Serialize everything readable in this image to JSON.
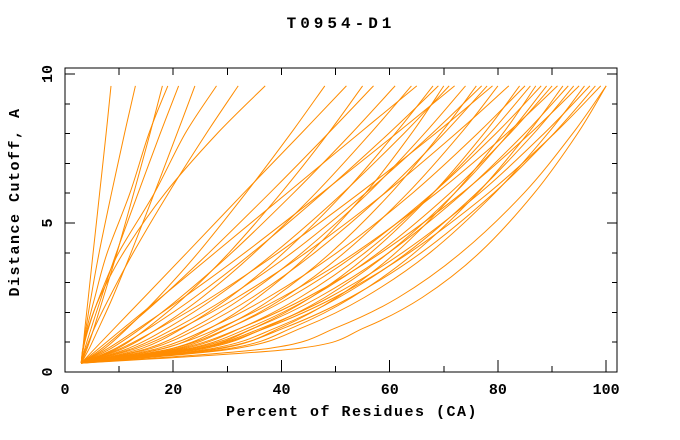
{
  "figure": {
    "background": "#FFFFFF",
    "title": "T0954-D1"
  },
  "chart_data": {
    "type": "line",
    "title": "T0954-D1",
    "xlabel": "Percent of Residues (CA)",
    "ylabel": "Distance Cutoff, A",
    "xlim": [
      0,
      102
    ],
    "ylim": [
      0,
      10.2
    ],
    "xticks": [
      0,
      20,
      40,
      60,
      80,
      100
    ],
    "xtick_labels": [
      "0",
      "20",
      "40",
      "60",
      "80",
      "100"
    ],
    "x_minor_ticks": [
      10,
      30,
      50,
      70,
      90
    ],
    "x_top_ticks": [
      10,
      20,
      30,
      40,
      50,
      60,
      70,
      80,
      90
    ],
    "yticks": [
      0,
      5,
      10
    ],
    "ytick_labels": [
      "0",
      "5",
      "10"
    ],
    "y_minor_ticks": [
      1,
      2,
      3,
      4,
      6,
      7,
      8,
      9
    ],
    "grid": false,
    "legend": "none",
    "line_color": "#FF8C00",
    "axis_color": "#000000",
    "cutoffs": [
      0.3,
      0.8,
      1.5,
      2.5,
      4,
      6,
      8,
      9.6
    ],
    "series": [
      {
        "percents": [
          3,
          3.3,
          3.7,
          4.3,
          5.2,
          6.4,
          7.6,
          8.5
        ]
      },
      {
        "percents": [
          3,
          3.3,
          3.9,
          4.8,
          6.3,
          8.6,
          11,
          13
        ]
      },
      {
        "percents": [
          3,
          4.1,
          5.4,
          7.1,
          9.6,
          12.7,
          15.7,
          18
        ]
      },
      {
        "percents": [
          3,
          3.4,
          4.1,
          5.5,
          7.8,
          12,
          15.5,
          19
        ]
      },
      {
        "percents": [
          3,
          3.7,
          4.9,
          6.7,
          9.5,
          13.5,
          17.6,
          21
        ]
      },
      {
        "percents": [
          3,
          4.5,
          6.3,
          8.8,
          12.2,
          16.5,
          20.7,
          24
        ]
      },
      {
        "percents": [
          3,
          3.4,
          4.4,
          6.3,
          9.9,
          16.5,
          22.2,
          28
        ]
      },
      {
        "percents": [
          3,
          3.9,
          5.5,
          8.2,
          12.6,
          19.1,
          26.1,
          32
        ]
      },
      {
        "percents": [
          3,
          3.3,
          4.3,
          6.4,
          10.8,
          18.5,
          28.1,
          37
        ]
      },
      {
        "percents": [
          3,
          7.4,
          11.7,
          17.2,
          24.6,
          33.4,
          41.7,
          48
        ]
      },
      {
        "percents": [
          3,
          5.6,
          9.3,
          14.6,
          22.5,
          33,
          43.6,
          52
        ]
      },
      {
        "percents": [
          3,
          9.8,
          15.4,
          22,
          30.3,
          39.9,
          48.6,
          55
        ]
      },
      {
        "percents": [
          3,
          6.9,
          11.5,
          17.8,
          26.6,
          37.8,
          48.6,
          57
        ]
      },
      {
        "percents": [
          3,
          8.6,
          14.3,
          21.3,
          30.8,
          42.2,
          52.9,
          61
        ]
      },
      {
        "percents": [
          3,
          10.9,
          17.5,
          25.3,
          35,
          46.3,
          56.4,
          64
        ]
      },
      {
        "percents": [
          3,
          6.3,
          11,
          17.7,
          27.7,
          41,
          54.3,
          65
        ]
      },
      {
        "percents": [
          3,
          14.3,
          22,
          30.4,
          40.4,
          51.5,
          61,
          68
        ]
      },
      {
        "percents": [
          3,
          9.4,
          15.8,
          23.9,
          34.6,
          47.6,
          59.8,
          69
        ]
      },
      {
        "percents": [
          3,
          18.5,
          27.1,
          35.6,
          45.3,
          55.5,
          64,
          70
        ]
      },
      {
        "percents": [
          3,
          11.8,
          19.2,
          27.8,
          38.7,
          51.3,
          62.6,
          71
        ]
      },
      {
        "percents": [
          3,
          8,
          13.9,
          21.9,
          33.2,
          47.4,
          61.2,
          72
        ]
      },
      {
        "percents": [
          3,
          15.4,
          23.8,
          32.9,
          43.8,
          56,
          66.4,
          74
        ]
      },
      {
        "percents": [
          3,
          19.9,
          29.2,
          38.6,
          49.1,
          60.2,
          69.4,
          76
        ]
      },
      {
        "percents": [
          3,
          12.6,
          20.6,
          30,
          41.9,
          55.5,
          67.8,
          77
        ]
      },
      {
        "percents": [
          3,
          16.1,
          25,
          34.6,
          46.1,
          59,
          70,
          78
        ]
      },
      {
        "percents": [
          3,
          10.4,
          17.7,
          27,
          39.4,
          54.4,
          68.4,
          79
        ]
      },
      {
        "percents": [
          3,
          20.9,
          30.6,
          40.5,
          51.6,
          63.3,
          73.1,
          80
        ]
      },
      {
        "percents": [
          3,
          13.3,
          21.8,
          31.8,
          44.5,
          59.1,
          72.2,
          82
        ]
      },
      {
        "percents": [
          3,
          24.8,
          35.2,
          45.4,
          56.5,
          68,
          77.4,
          84
        ]
      },
      {
        "percents": [
          3,
          17.3,
          27,
          37.5,
          50.2,
          64.2,
          76.2,
          85
        ]
      },
      {
        "percents": [
          3,
          22.3,
          32.8,
          43.4,
          55.4,
          68,
          78.5,
          86
        ]
      },
      {
        "percents": [
          3,
          29.1,
          40,
          50.2,
          61.1,
          72,
          80.9,
          87
        ]
      },
      {
        "percents": [
          3,
          20.1,
          30.5,
          41.5,
          54.2,
          67.9,
          79.6,
          88
        ]
      },
      {
        "percents": [
          3,
          26.1,
          37.2,
          48,
          59.8,
          72,
          82,
          89
        ]
      },
      {
        "percents": [
          3,
          23.2,
          34.2,
          45.4,
          57.9,
          71.1,
          82.2,
          90
        ]
      },
      {
        "percents": [
          3,
          18.3,
          28.8,
          40,
          53.6,
          68.6,
          81.6,
          91
        ]
      },
      {
        "percents": [
          3,
          30.7,
          42.2,
          53,
          64.6,
          76.2,
          85.5,
          92
        ]
      },
      {
        "percents": [
          3,
          23.9,
          35.3,
          46.8,
          59.8,
          73.5,
          84.9,
          93
        ]
      },
      {
        "percents": [
          3,
          27.5,
          39.2,
          50.6,
          63.2,
          76,
          86.6,
          94
        ]
      },
      {
        "percents": [
          3,
          21.5,
          32.8,
          44.7,
          58.4,
          73.3,
          85.9,
          95
        ]
      },
      {
        "percents": [
          3,
          31.9,
          44,
          55.3,
          67.4,
          79.4,
          89.2,
          96
        ]
      },
      {
        "percents": [
          3,
          24.8,
          36.7,
          48.8,
          62.3,
          76.6,
          88.5,
          97
        ]
      },
      {
        "percents": [
          3,
          28.6,
          40.8,
          52.7,
          65.8,
          79.2,
          90.3,
          98
        ]
      },
      {
        "percents": [
          3,
          25.3,
          37.5,
          49.8,
          63.6,
          78.2,
          90.4,
          99
        ]
      },
      {
        "percents": [
          3,
          43.4,
          55.5,
          66,
          76.6,
          86.7,
          94.7,
          100
        ]
      },
      {
        "percents": [
          3,
          37.9,
          50.3,
          61.6,
          73.2,
          84.8,
          93.8,
          100
        ]
      }
    ]
  }
}
